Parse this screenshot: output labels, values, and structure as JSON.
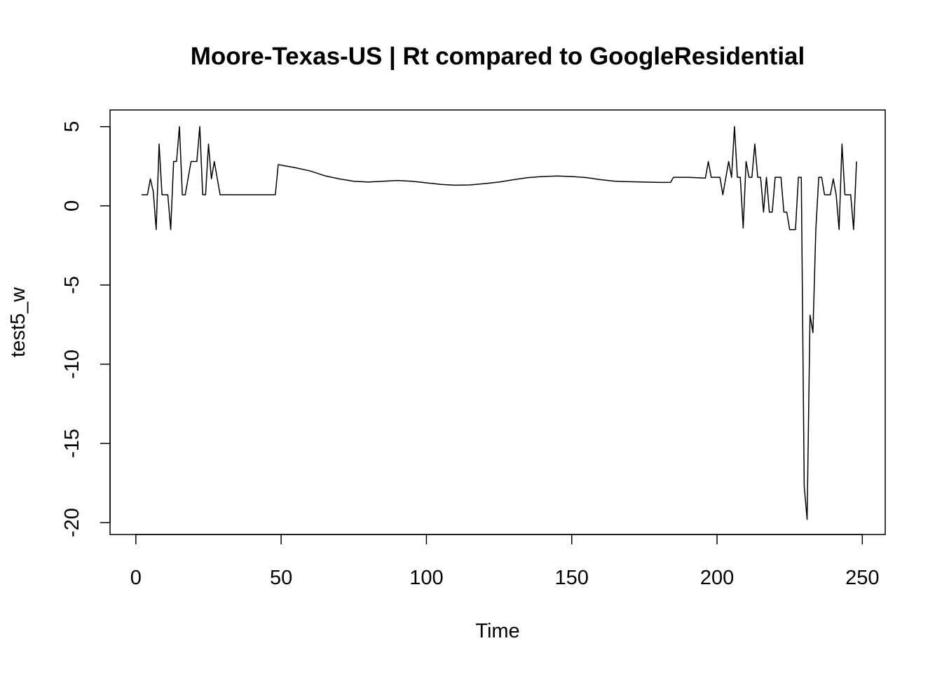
{
  "chart_data": {
    "type": "line",
    "title": "Moore-Texas-US | Rt compared to GoogleResidential",
    "x_label": "Time",
    "y_label": "test5_w",
    "color": "#000000",
    "x": [
      2,
      4,
      5,
      6,
      7,
      8,
      9,
      11,
      12,
      13,
      14,
      15,
      16,
      17,
      19,
      21,
      22,
      23,
      24,
      25,
      26,
      27,
      29,
      48,
      49,
      55,
      60,
      65,
      70,
      75,
      80,
      85,
      90,
      95,
      100,
      105,
      110,
      115,
      120,
      125,
      130,
      135,
      140,
      145,
      150,
      155,
      160,
      165,
      170,
      175,
      180,
      184,
      185,
      190,
      196,
      197,
      198,
      201,
      202,
      204,
      205,
      206,
      207,
      208,
      209,
      210,
      211,
      212,
      213,
      214,
      215,
      216,
      217,
      218,
      219,
      220,
      222,
      223,
      224,
      225,
      227,
      228,
      229,
      230,
      231,
      232,
      233,
      234,
      235,
      236,
      237,
      239,
      240,
      241,
      242,
      243,
      244,
      246,
      247,
      248
    ],
    "values": [
      0.7,
      0.7,
      1.7,
      0.9,
      -1.5,
      3.9,
      0.7,
      0.7,
      -1.5,
      2.8,
      2.8,
      5.0,
      0.7,
      0.7,
      2.8,
      2.8,
      5.0,
      0.7,
      0.7,
      3.9,
      1.7,
      2.8,
      0.7,
      0.7,
      2.6,
      2.4,
      2.2,
      1.9,
      1.7,
      1.55,
      1.5,
      1.55,
      1.6,
      1.55,
      1.45,
      1.35,
      1.3,
      1.32,
      1.4,
      1.5,
      1.65,
      1.78,
      1.85,
      1.88,
      1.85,
      1.78,
      1.65,
      1.55,
      1.52,
      1.5,
      1.48,
      1.48,
      1.8,
      1.8,
      1.75,
      2.8,
      1.8,
      1.8,
      0.7,
      2.8,
      1.8,
      5.0,
      1.8,
      1.8,
      -1.4,
      2.8,
      1.8,
      1.8,
      3.9,
      1.8,
      1.8,
      -0.4,
      1.8,
      -0.4,
      -0.4,
      1.8,
      1.8,
      -0.4,
      -0.4,
      -1.5,
      -1.5,
      1.8,
      1.8,
      -17.7,
      -19.8,
      -6.9,
      -8.0,
      -1.5,
      1.8,
      1.8,
      0.7,
      0.7,
      1.7,
      0.7,
      -1.5,
      3.9,
      0.7,
      0.7,
      -1.5,
      2.8
    ],
    "xlim": [
      -8.88,
      257.88
    ],
    "xticks": [
      0,
      50,
      100,
      150,
      200,
      250
    ],
    "ylim": [
      -20.75,
      6.05
    ],
    "yticks": [
      -20,
      -15,
      -10,
      -5,
      0,
      5
    ]
  }
}
